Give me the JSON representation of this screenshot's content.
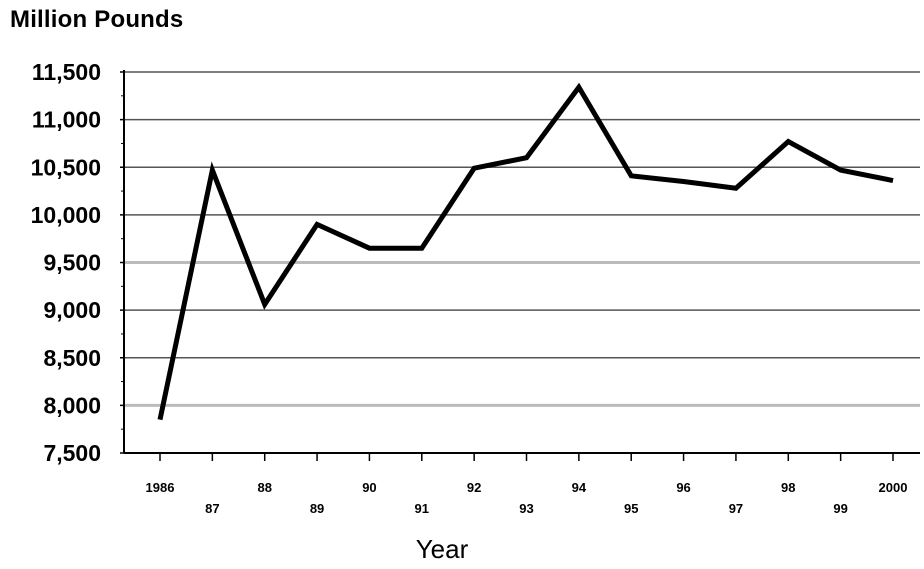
{
  "chart_data": {
    "type": "line",
    "ylabel": "Million Pounds",
    "xlabel": "Year",
    "ylim": [
      7500,
      11500
    ],
    "yticks": [
      "7,500",
      "8,000",
      "8,500",
      "9,000",
      "9,500",
      "10,000",
      "10,500",
      "11,000",
      "11,500"
    ],
    "x_tick_labels": [
      "1986",
      "87",
      "88",
      "89",
      "90",
      "91",
      "92",
      "93",
      "94",
      "95",
      "96",
      "97",
      "98",
      "99",
      "2000"
    ],
    "x": [
      1986,
      1987,
      1988,
      1989,
      1990,
      1991,
      1992,
      1993,
      1994,
      1995,
      1996,
      1997,
      1998,
      1999,
      2000
    ],
    "series": [
      {
        "values": [
          7850,
          10470,
          9060,
          9900,
          9650,
          9650,
          10490,
          10600,
          11340,
          10410,
          10350,
          10280,
          10770,
          10470,
          10360
        ]
      }
    ],
    "grid": true,
    "line_color": "#000000",
    "grid_color": "#555555",
    "light_grid_color": "#bbbbbb"
  }
}
